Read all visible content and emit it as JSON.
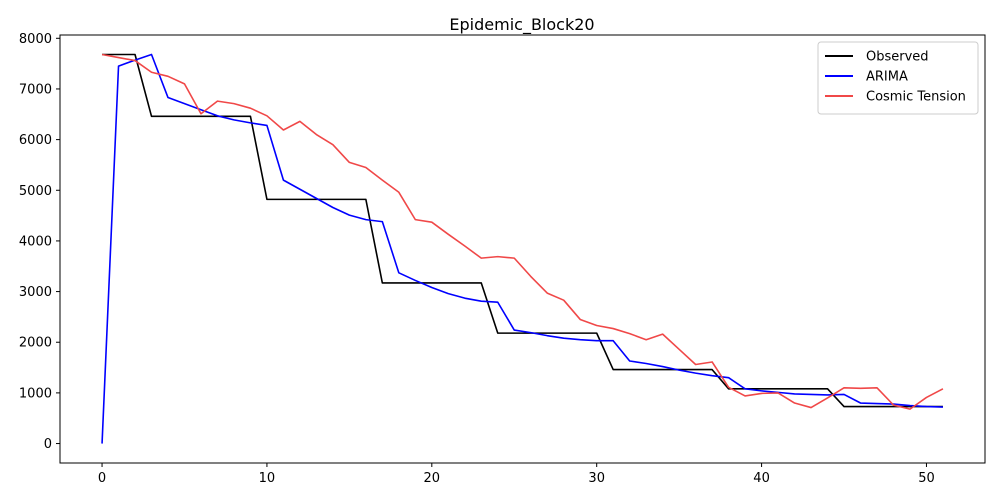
{
  "chart_data": {
    "type": "line",
    "title": "Epidemic_Block20",
    "xlabel": "",
    "ylabel": "",
    "xlim": [
      -2.55,
      53.55
    ],
    "ylim": [
      -384,
      8065
    ],
    "x_ticks": [
      0,
      10,
      20,
      30,
      40,
      50
    ],
    "y_ticks": [
      0,
      1000,
      2000,
      3000,
      4000,
      5000,
      6000,
      7000,
      8000
    ],
    "grid": false,
    "legend_position": "top-right",
    "series": [
      {
        "name": "Observed",
        "color": "#000000",
        "x": [
          0,
          1,
          2,
          3,
          4,
          5,
          6,
          7,
          8,
          9,
          10,
          11,
          12,
          13,
          14,
          15,
          16,
          17,
          18,
          19,
          20,
          21,
          22,
          23,
          24,
          25,
          26,
          27,
          28,
          29,
          30,
          31,
          32,
          33,
          34,
          35,
          36,
          37,
          38,
          39,
          40,
          41,
          42,
          43,
          44,
          45,
          46,
          47,
          48,
          49,
          50,
          51
        ],
        "values": [
          7680,
          7680,
          7680,
          6460,
          6460,
          6460,
          6460,
          6460,
          6460,
          6460,
          4820,
          4820,
          4820,
          4820,
          4820,
          4820,
          4820,
          3170,
          3170,
          3170,
          3170,
          3170,
          3170,
          3170,
          2180,
          2180,
          2180,
          2180,
          2180,
          2180,
          2180,
          1460,
          1460,
          1460,
          1460,
          1460,
          1460,
          1460,
          1080,
          1080,
          1080,
          1080,
          1080,
          1080,
          1080,
          730,
          730,
          730,
          730,
          730,
          730,
          730
        ]
      },
      {
        "name": "ARIMA",
        "color": "#0000ff",
        "x": [
          0,
          1,
          2,
          3,
          4,
          5,
          6,
          7,
          8,
          9,
          10,
          11,
          12,
          13,
          14,
          15,
          16,
          17,
          18,
          19,
          20,
          21,
          22,
          23,
          24,
          25,
          26,
          27,
          28,
          29,
          30,
          31,
          32,
          33,
          34,
          35,
          36,
          37,
          38,
          39,
          40,
          41,
          42,
          43,
          44,
          45,
          46,
          47,
          48,
          49,
          50,
          51
        ],
        "values": [
          0,
          7450,
          7570,
          7680,
          6830,
          6710,
          6590,
          6470,
          6390,
          6330,
          6280,
          5200,
          5020,
          4840,
          4660,
          4510,
          4420,
          4380,
          3370,
          3220,
          3080,
          2960,
          2870,
          2810,
          2790,
          2240,
          2190,
          2130,
          2080,
          2050,
          2030,
          2030,
          1630,
          1580,
          1520,
          1450,
          1390,
          1340,
          1300,
          1080,
          1040,
          1010,
          980,
          970,
          960,
          970,
          800,
          790,
          780,
          750,
          730,
          720
        ]
      },
      {
        "name": "Cosmic Tension",
        "color": "#f04848",
        "x": [
          0,
          1,
          2,
          3,
          4,
          5,
          6,
          7,
          8,
          9,
          10,
          11,
          12,
          13,
          14,
          15,
          16,
          17,
          18,
          19,
          20,
          21,
          22,
          23,
          24,
          25,
          26,
          27,
          28,
          29,
          30,
          31,
          32,
          33,
          34,
          35,
          36,
          37,
          38,
          39,
          40,
          41,
          42,
          43,
          44,
          45,
          46,
          47,
          48,
          49,
          50,
          51
        ],
        "values": [
          7680,
          7620,
          7560,
          7330,
          7250,
          7100,
          6510,
          6760,
          6710,
          6620,
          6470,
          6190,
          6360,
          6100,
          5900,
          5550,
          5450,
          5200,
          4960,
          4420,
          4370,
          4130,
          3900,
          3660,
          3690,
          3660,
          3300,
          2970,
          2830,
          2450,
          2330,
          2270,
          2170,
          2050,
          2160,
          1860,
          1560,
          1610,
          1110,
          940,
          990,
          1000,
          800,
          710,
          900,
          1100,
          1090,
          1100,
          760,
          680,
          910,
          1080
        ]
      }
    ]
  }
}
